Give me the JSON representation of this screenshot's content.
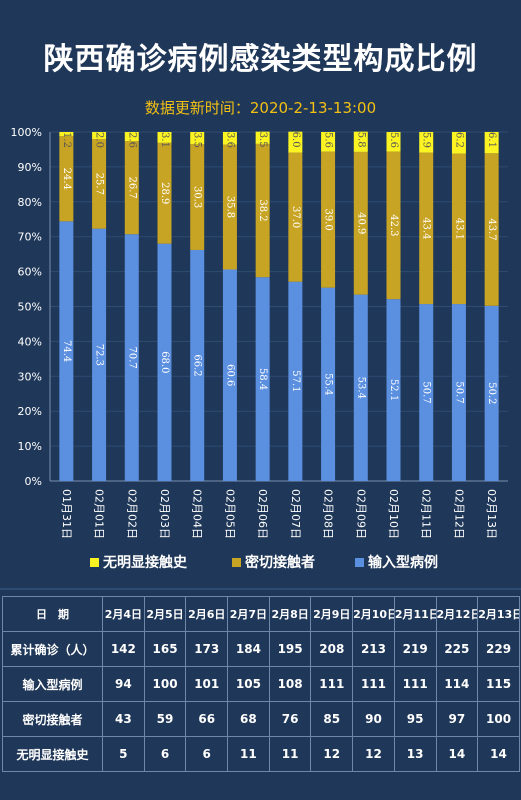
{
  "title": "陕西确诊病例感染类型构成比例",
  "subtitle": "数据更新时间：2020-2-13-13:00",
  "colors": {
    "background": "#1f3758",
    "imported": "#5b8fe0",
    "close_contact": "#c8a424",
    "unknown": "#fbf422",
    "title": "#ffffff",
    "subtitle": "#f2c014"
  },
  "chart_data": {
    "type": "bar",
    "stacked": true,
    "percent": true,
    "title": "陕西确诊病例感染类型构成比例",
    "categories": [
      "01月31日",
      "02月01日",
      "02月02日",
      "02月03日",
      "02月04日",
      "02月05日",
      "02月06日",
      "02月07日",
      "02月08日",
      "02月09日",
      "02月10日",
      "02月11日",
      "02月12日",
      "02月13日"
    ],
    "y_ticks": [
      "0%",
      "10%",
      "20%",
      "30%",
      "40%",
      "50%",
      "60%",
      "70%",
      "80%",
      "90%",
      "100%"
    ],
    "ylim": [
      0,
      100
    ],
    "legend_position": "bottom",
    "series": [
      {
        "name": "输入型病例",
        "color": "#5b8fe0",
        "values": [
          74.4,
          72.3,
          70.7,
          68.0,
          66.2,
          60.6,
          58.4,
          57.1,
          55.4,
          53.4,
          52.1,
          50.7,
          50.7,
          50.2
        ]
      },
      {
        "name": "密切接触者",
        "color": "#c8a424",
        "values": [
          24.4,
          25.7,
          26.7,
          28.9,
          30.3,
          35.8,
          38.2,
          37.0,
          39.0,
          40.9,
          42.3,
          43.4,
          43.1,
          43.7
        ]
      },
      {
        "name": "无明显接触史",
        "color": "#fbf422",
        "values": [
          1.2,
          2.0,
          2.6,
          3.1,
          3.5,
          3.6,
          3.5,
          6.0,
          5.6,
          5.8,
          5.6,
          5.9,
          6.2,
          6.1
        ]
      }
    ],
    "value_labels": [
      [
        "74.4",
        "72.3",
        "70.7",
        "68.0",
        "66.2",
        "60.6",
        "58.4",
        "57.1",
        "55.4",
        "53.4",
        "52.1",
        "50.7",
        "50.7",
        "50.2"
      ],
      [
        "24.4",
        "25.7",
        "26.7",
        "28.9",
        "30.3",
        "35.8",
        "38.2",
        "37.0",
        "39.0",
        "40.9",
        "42.3",
        "43.4",
        "43.1",
        "43.7"
      ],
      [
        "1.2",
        "2.0",
        "2.6",
        "3.1",
        "3.5",
        "3.6",
        "3.5",
        "6.0",
        "5.6",
        "5.8",
        "5.6",
        "5.9",
        "6.2",
        "6.1"
      ]
    ]
  },
  "legend": {
    "unknown": "无明显接触史",
    "close_contact": "密切接触者",
    "imported": "输入型病例"
  },
  "table": {
    "header_label": "日　期",
    "dates": [
      "2月4日",
      "2月5日",
      "2月6日",
      "2月7日",
      "2月8日",
      "2月9日",
      "2月10日",
      "2月11日",
      "2月12日",
      "2月13日"
    ],
    "rows": [
      {
        "label": "累计确诊（人）",
        "values": [
          "142",
          "165",
          "173",
          "184",
          "195",
          "208",
          "213",
          "219",
          "225",
          "229"
        ]
      },
      {
        "label": "输入型病例",
        "values": [
          "94",
          "100",
          "101",
          "105",
          "108",
          "111",
          "111",
          "111",
          "114",
          "115"
        ]
      },
      {
        "label": "密切接触者",
        "values": [
          "43",
          "59",
          "66",
          "68",
          "76",
          "85",
          "90",
          "95",
          "97",
          "100"
        ]
      },
      {
        "label": "无明显接触史",
        "values": [
          "5",
          "6",
          "6",
          "11",
          "11",
          "12",
          "12",
          "13",
          "14",
          "14"
        ]
      }
    ]
  }
}
